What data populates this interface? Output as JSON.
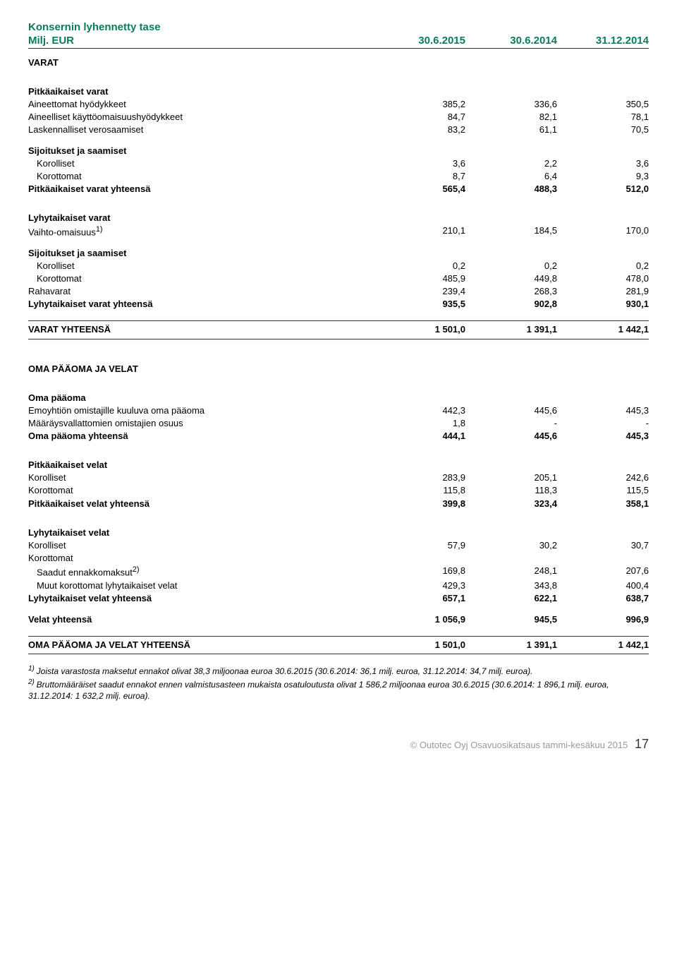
{
  "title": "Konsernin lyhennetty tase",
  "unit": "Milj. EUR",
  "columns": [
    "30.6.2015",
    "30.6.2014",
    "31.12.2014"
  ],
  "sections": [
    {
      "type": "heading",
      "label": "VARAT"
    },
    {
      "type": "spacer"
    },
    {
      "type": "subheading",
      "label": "Pitkäaikaiset varat"
    },
    {
      "type": "row",
      "label": "Aineettomat hyödykkeet",
      "vals": [
        "385,2",
        "336,6",
        "350,5"
      ]
    },
    {
      "type": "row",
      "label": "Aineelliset käyttöomaisuushyödykkeet",
      "vals": [
        "84,7",
        "82,1",
        "78,1"
      ]
    },
    {
      "type": "row",
      "label": "Laskennalliset verosaamiset",
      "vals": [
        "83,2",
        "61,1",
        "70,5"
      ]
    },
    {
      "type": "subheading",
      "label": "Sijoitukset ja saamiset"
    },
    {
      "type": "row",
      "label": "Korolliset",
      "indent": 1,
      "vals": [
        "3,6",
        "2,2",
        "3,6"
      ]
    },
    {
      "type": "row",
      "label": "Korottomat",
      "indent": 1,
      "vals": [
        "8,7",
        "6,4",
        "9,3"
      ]
    },
    {
      "type": "row",
      "label": "Pitkäaikaiset varat yhteensä",
      "bold": true,
      "vals": [
        "565,4",
        "488,3",
        "512,0"
      ]
    },
    {
      "type": "spacer"
    },
    {
      "type": "subheading",
      "label": "Lyhytaikaiset varat"
    },
    {
      "type": "row",
      "label": "Vaihto-omaisuus",
      "sup": "1)",
      "vals": [
        "210,1",
        "184,5",
        "170,0"
      ]
    },
    {
      "type": "subheading",
      "label": "Sijoitukset ja saamiset"
    },
    {
      "type": "row",
      "label": "Korolliset",
      "indent": 1,
      "vals": [
        "0,2",
        "0,2",
        "0,2"
      ]
    },
    {
      "type": "row",
      "label": "Korottomat",
      "indent": 1,
      "vals": [
        "485,9",
        "449,8",
        "478,0"
      ]
    },
    {
      "type": "row",
      "label": "Rahavarat",
      "vals": [
        "239,4",
        "268,3",
        "281,9"
      ]
    },
    {
      "type": "row",
      "label": "Lyhytaikaiset varat yhteensä",
      "bold": true,
      "vals": [
        "935,5",
        "902,8",
        "930,1"
      ]
    },
    {
      "type": "spacer"
    },
    {
      "type": "total",
      "label": "VARAT YHTEENSÄ",
      "vals": [
        "1 501,0",
        "1 391,1",
        "1 442,1"
      ]
    },
    {
      "type": "spacer"
    },
    {
      "type": "heading",
      "label": "OMA PÄÄOMA JA VELAT"
    },
    {
      "type": "spacer"
    },
    {
      "type": "subheading",
      "label": "Oma pääoma"
    },
    {
      "type": "row",
      "label": "Emoyhtiön omistajille kuuluva oma pääoma",
      "vals": [
        "442,3",
        "445,6",
        "445,3"
      ]
    },
    {
      "type": "row",
      "label": "Määräysvallattomien omistajien osuus",
      "vals": [
        "1,8",
        "-",
        "-"
      ]
    },
    {
      "type": "row",
      "label": "Oma pääoma yhteensä",
      "bold": true,
      "vals": [
        "444,1",
        "445,6",
        "445,3"
      ]
    },
    {
      "type": "spacer"
    },
    {
      "type": "subheading",
      "label": "Pitkäaikaiset velat"
    },
    {
      "type": "row",
      "label": "Korolliset",
      "vals": [
        "283,9",
        "205,1",
        "242,6"
      ]
    },
    {
      "type": "row",
      "label": "Korottomat",
      "vals": [
        "115,8",
        "118,3",
        "115,5"
      ]
    },
    {
      "type": "row",
      "label": "Pitkäaikaiset velat yhteensä",
      "bold": true,
      "vals": [
        "399,8",
        "323,4",
        "358,1"
      ]
    },
    {
      "type": "spacer"
    },
    {
      "type": "subheading",
      "label": "Lyhytaikaiset velat"
    },
    {
      "type": "row",
      "label": "Korolliset",
      "vals": [
        "57,9",
        "30,2",
        "30,7"
      ]
    },
    {
      "type": "row",
      "label": "Korottomat",
      "vals": [
        "",
        "",
        ""
      ]
    },
    {
      "type": "row",
      "label": "Saadut ennakkomaksut",
      "sup": "2)",
      "indent": 1,
      "vals": [
        "169,8",
        "248,1",
        "207,6"
      ]
    },
    {
      "type": "row",
      "label": "Muut korottomat lyhytaikaiset velat",
      "indent": 1,
      "vals": [
        "429,3",
        "343,8",
        "400,4"
      ]
    },
    {
      "type": "row",
      "label": "Lyhytaikaiset velat yhteensä",
      "bold": true,
      "vals": [
        "657,1",
        "622,1",
        "638,7"
      ]
    },
    {
      "type": "spacer"
    },
    {
      "type": "row",
      "label": "Velat yhteensä",
      "bold": true,
      "vals": [
        "1 056,9",
        "945,5",
        "996,9"
      ]
    },
    {
      "type": "spacer"
    },
    {
      "type": "total",
      "label": "OMA PÄÄOMA JA VELAT YHTEENSÄ",
      "vals": [
        "1 501,0",
        "1 391,1",
        "1 442,1"
      ]
    }
  ],
  "footnotes": [
    {
      "sup": "1)",
      "text": "Joista varastosta maksetut ennakot olivat 38,3 miljoonaa euroa 30.6.2015 (30.6.2014: 36,1 milj. euroa, 31.12.2014: 34,7 milj. euroa)."
    },
    {
      "sup": "2)",
      "text": "Bruttomääräiset saadut ennakot ennen valmistusasteen mukaista osatuloutusta olivat 1 586,2 miljoonaa euroa 30.6.2015 (30.6.2014: 1 896,1 milj. euroa, 31.12.2014: 1 632,2 milj. euroa)."
    }
  ],
  "footer": {
    "text": "© Outotec Oyj   Osavuosikatsaus tammi-kesäkuu 2015",
    "page": "17"
  }
}
